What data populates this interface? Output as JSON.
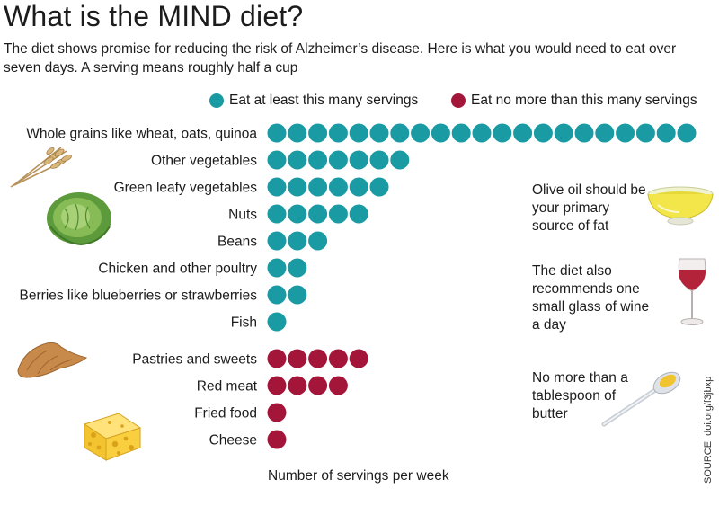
{
  "header": {
    "title": "What is the MIND diet?",
    "subtitle": "The diet shows promise for reducing the risk of Alzheimer’s disease. Here is what you would need to eat over seven days. A serving means roughly half a cup"
  },
  "legend": {
    "min_label": "Eat at least this many servings",
    "max_label": "Eat no more than this many servings"
  },
  "colors": {
    "min": "#1a9aa3",
    "max": "#a3163a"
  },
  "notes": {
    "oil": "Olive oil should be your primary source of fat",
    "wine": "The diet also recommends one small glass of wine a day",
    "butter": "No more than a tablespoon of butter"
  },
  "source": "SOURCE: doi.org/f3jbxp",
  "chart_data": {
    "type": "bar",
    "title": "What is the MIND diet?",
    "xlabel": "Number of servings per week",
    "ylabel": "",
    "categories": [
      "Whole grains like wheat, oats, quinoa",
      "Other vegetables",
      "Green leafy vegetables",
      "Nuts",
      "Beans",
      "Chicken and other poultry",
      "Berries like blueberries or strawberries",
      "Fish",
      "Pastries and sweets",
      "Red meat",
      "Fried food",
      "Cheese"
    ],
    "series": [
      {
        "name": "Eat at least this many servings",
        "values": [
          21,
          7,
          6,
          5,
          3,
          2,
          2,
          1,
          0,
          0,
          0,
          0
        ]
      },
      {
        "name": "Eat no more than this many servings",
        "values": [
          0,
          0,
          0,
          0,
          0,
          0,
          0,
          0,
          5,
          4,
          1,
          1
        ]
      }
    ]
  }
}
